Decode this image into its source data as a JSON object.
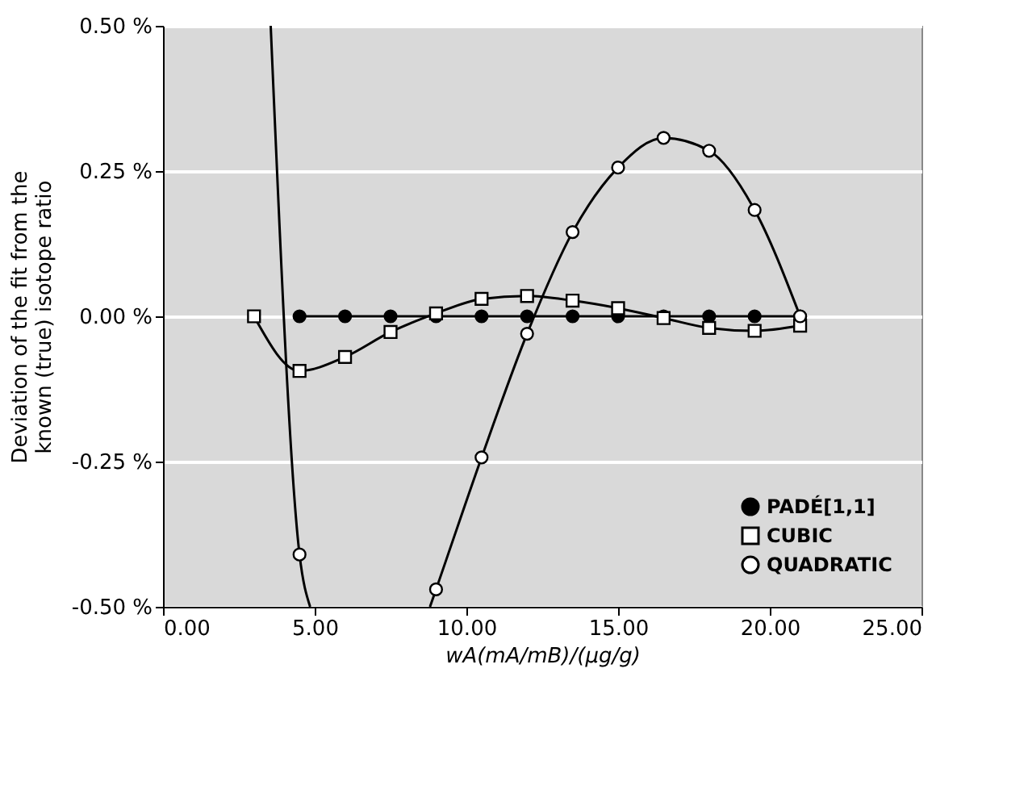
{
  "chart_data": {
    "type": "line",
    "xlabel": "wA(mA/mB)/(µg/g)",
    "ylabel": "Deviation of the fit from the\nknown (true) isotope ratio",
    "xlim": [
      0,
      25
    ],
    "ylim": [
      -0.5,
      0.5
    ],
    "xticks": [
      {
        "value": 0,
        "label": "0.00"
      },
      {
        "value": 5,
        "label": "5.00"
      },
      {
        "value": 10,
        "label": "10.00"
      },
      {
        "value": 15,
        "label": "15.00"
      },
      {
        "value": 20,
        "label": "20.00"
      },
      {
        "value": 25,
        "label": "25.00"
      }
    ],
    "yticks": [
      {
        "value": -0.5,
        "label": "-0.50 %"
      },
      {
        "value": -0.25,
        "label": "-0.25 %"
      },
      {
        "value": 0,
        "label": "0.00 %"
      },
      {
        "value": 0.25,
        "label": "0.25 %"
      },
      {
        "value": 0.5,
        "label": "0.50 %"
      }
    ],
    "grid": "y",
    "legend": "bottom right",
    "series": [
      {
        "name": "PADÉ[1,1]",
        "marker": "circle",
        "color": "#000000",
        "x": [
          4.5,
          6,
          7.5,
          9,
          10.5,
          12,
          13.5,
          15,
          16.5,
          18,
          19.5,
          21
        ],
        "values": [
          0,
          0,
          0,
          0,
          0,
          0,
          0,
          0,
          0,
          0,
          0,
          0
        ]
      },
      {
        "name": "CUBIC",
        "marker": "square",
        "color": "#ffffff",
        "x": [
          3,
          4.5,
          6,
          7.5,
          9,
          10.5,
          12,
          13.5,
          15,
          16.5,
          18,
          19.5,
          21
        ],
        "values": [
          0,
          -0.094,
          -0.07,
          -0.027,
          0.005,
          0.03,
          0.035,
          0.027,
          0.014,
          -0.003,
          -0.02,
          -0.025,
          -0.016
        ]
      },
      {
        "marker": "none",
        "color": "#000000",
        "x": [
          3.55,
          4.5,
          4.85,
          4.9,
          8.8,
          9,
          10.5,
          12,
          13.5,
          15,
          16.5,
          18,
          19.5,
          21
        ],
        "values": [
          0.5,
          -0.41,
          -0.5,
          null,
          -0.5,
          -0.47,
          -0.243,
          -0.03,
          0.145,
          0.256,
          0.307,
          0.285,
          0.183,
          0
        ]
      },
      {
        "name": "QUADRATIC",
        "type": "scatter",
        "marker": "circle",
        "color": "#ffffff",
        "x": [
          4.5,
          9,
          10.5,
          12,
          13.5,
          15,
          16.5,
          18,
          19.5,
          21
        ],
        "values": [
          -0.41,
          -0.47,
          -0.243,
          -0.03,
          0.145,
          0.256,
          0.307,
          0.285,
          0.183,
          0
        ]
      }
    ]
  }
}
